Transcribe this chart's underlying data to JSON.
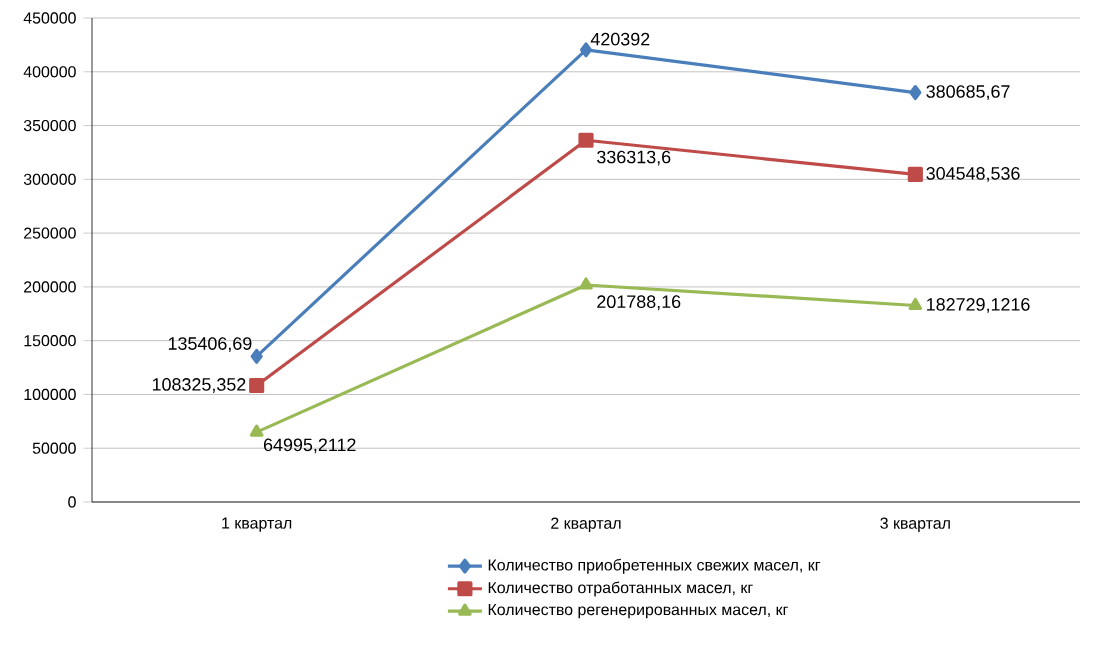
{
  "chart_data": {
    "type": "line",
    "categories": [
      "1 квартал",
      "2 квартал",
      "3 квартал"
    ],
    "series": [
      {
        "name": "Количество приобретенных свежих масел, кг",
        "color": "#4a7ebb",
        "marker": "diamond",
        "values": [
          135406.69,
          420392,
          380685.67
        ],
        "value_labels": [
          "135406,69",
          "420392",
          "380685,67"
        ]
      },
      {
        "name": "Количество отработанных масел, кг",
        "color": "#be4b48",
        "marker": "square",
        "values": [
          108325.352,
          336313.6,
          304548.536
        ],
        "value_labels": [
          "108325,352",
          "336313,6",
          "304548,536"
        ]
      },
      {
        "name": "Количество регенерированных масел, кг",
        "color": "#98b954",
        "marker": "triangle",
        "values": [
          64995.2112,
          201788.16,
          182729.1216
        ],
        "value_labels": [
          "64995,2112",
          "201788,16",
          "182729,1216"
        ]
      }
    ],
    "ylim": [
      0,
      450000
    ],
    "yticks": [
      0,
      50000,
      100000,
      150000,
      200000,
      250000,
      300000,
      350000,
      400000,
      450000
    ],
    "grid": "y",
    "legend": "bottom"
  }
}
